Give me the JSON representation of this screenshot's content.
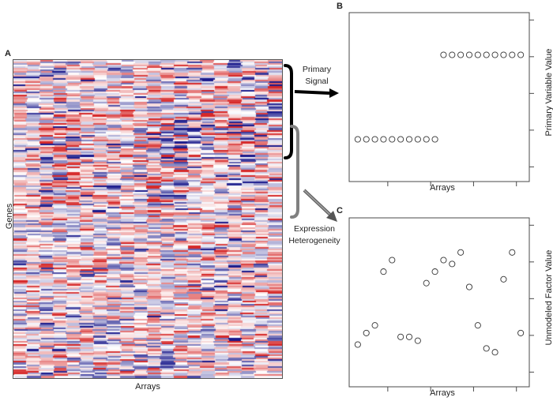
{
  "panel_a": {
    "letter": "A",
    "x_label": "Arrays",
    "y_label": "Genes",
    "heatmap": {
      "rows": 190,
      "cols": 20,
      "colormap": [
        "#1a1a8c",
        "#ffffff",
        "#d62828"
      ]
    }
  },
  "annotations": {
    "primary_signal_line1": "Primary",
    "primary_signal_line2": "Signal",
    "heterogeneity_line1": "Expression",
    "heterogeneity_line2": "Heterogeneity"
  },
  "panel_b": {
    "letter": "B",
    "x_label": "Arrays",
    "y_label": "Primary Variable Value"
  },
  "panel_c": {
    "letter": "C",
    "x_label": "Arrays",
    "y_label": "Unmodeled Factor Value"
  },
  "chart_data": [
    {
      "type": "scatter",
      "title": "",
      "xlabel": "Arrays",
      "ylabel": "Primary Variable Value",
      "x": [
        1,
        2,
        3,
        4,
        5,
        6,
        7,
        8,
        9,
        10,
        11,
        12,
        13,
        14,
        15,
        16,
        17,
        18,
        19,
        20
      ],
      "y": [
        0,
        0,
        0,
        0,
        0,
        0,
        0,
        0,
        0,
        0,
        1,
        1,
        1,
        1,
        1,
        1,
        1,
        1,
        1,
        1
      ],
      "xlim": [
        0,
        21
      ],
      "ylim": [
        -0.5,
        1.5
      ],
      "marker": "open-circle",
      "grid": false
    },
    {
      "type": "scatter",
      "title": "",
      "xlabel": "Arrays",
      "ylabel": "Unmodeled Factor Value",
      "x": [
        1,
        2,
        3,
        4,
        5,
        6,
        7,
        8,
        9,
        10,
        11,
        12,
        13,
        14,
        15,
        16,
        17,
        18,
        19,
        20
      ],
      "y": [
        0.3,
        0.6,
        0.8,
        2.2,
        2.5,
        0.5,
        0.5,
        0.4,
        1.9,
        2.2,
        2.5,
        2.4,
        2.7,
        1.8,
        0.8,
        0.2,
        0.1,
        2.0,
        2.7,
        0.6
      ],
      "xlim": [
        0,
        21
      ],
      "ylim": [
        -0.8,
        3.6
      ],
      "marker": "open-circle",
      "grid": false
    }
  ]
}
